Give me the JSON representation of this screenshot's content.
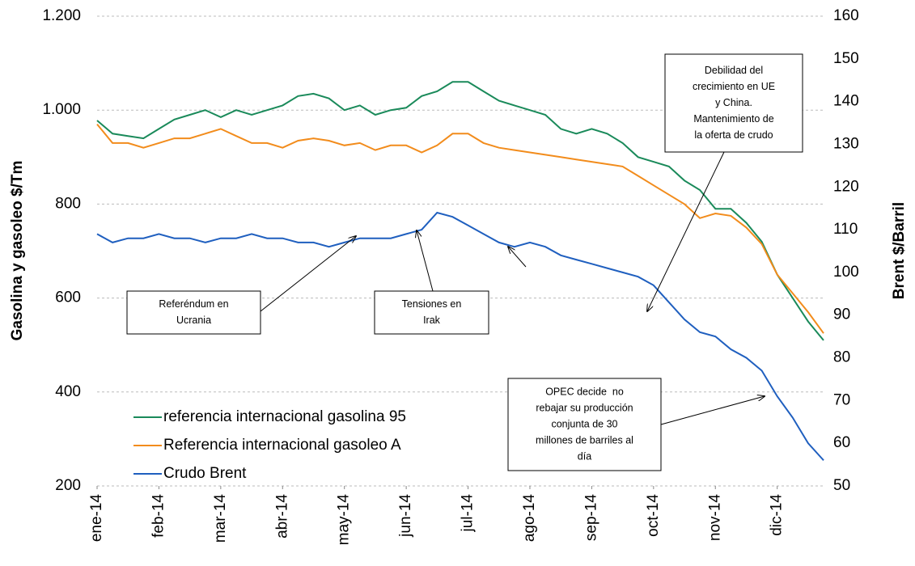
{
  "chart_data": {
    "type": "line",
    "y_label": "Gasolina y gasoleo $/Tm",
    "y2_label": "Brent $/Barril",
    "x": [
      0,
      0.25,
      0.5,
      0.75,
      1,
      1.25,
      1.5,
      1.75,
      2,
      2.25,
      2.5,
      2.75,
      3,
      3.25,
      3.5,
      3.75,
      4,
      4.25,
      4.5,
      4.75,
      5,
      5.25,
      5.5,
      5.75,
      6,
      6.25,
      6.5,
      6.75,
      7,
      7.25,
      7.5,
      7.75,
      8,
      8.25,
      8.5,
      8.75,
      9,
      9.25,
      9.5,
      9.75,
      10,
      10.25,
      10.5,
      10.75,
      11,
      11.25,
      11.5,
      11.75
    ],
    "xlim": [
      0,
      11.75
    ],
    "xticks": [
      {
        "value": 0,
        "label": "ene-14"
      },
      {
        "value": 1,
        "label": "feb-14"
      },
      {
        "value": 2,
        "label": "mar-14"
      },
      {
        "value": 3,
        "label": "abr-14"
      },
      {
        "value": 4,
        "label": "may-14"
      },
      {
        "value": 5,
        "label": "jun-14"
      },
      {
        "value": 6,
        "label": "jul-14"
      },
      {
        "value": 7,
        "label": "ago-14"
      },
      {
        "value": 8,
        "label": "sep-14"
      },
      {
        "value": 9,
        "label": "oct-14"
      },
      {
        "value": 10,
        "label": "nov-14"
      },
      {
        "value": 11,
        "label": "dic-14"
      }
    ],
    "ylim": [
      200,
      1200
    ],
    "yticks": [
      200,
      400,
      600,
      800,
      {
        "value": 1000,
        "label": "1.000"
      },
      {
        "value": 1200,
        "label": "1.200"
      }
    ],
    "y2lim": [
      50,
      160
    ],
    "y2ticks": [
      50,
      60,
      70,
      80,
      90,
      100,
      110,
      120,
      130,
      140,
      150,
      160
    ],
    "grid": true,
    "legend": "lower left",
    "series": [
      {
        "name": "referencia internacional gasolina 95",
        "color": "#1a8a5a",
        "values": [
          978,
          950,
          945,
          940,
          960,
          980,
          990,
          1000,
          985,
          1000,
          990,
          1000,
          1010,
          1030,
          1035,
          1025,
          1000,
          1010,
          990,
          1000,
          1005,
          1030,
          1040,
          1060,
          1060,
          1040,
          1020,
          1010,
          1000,
          990,
          960,
          950,
          960,
          950,
          930,
          900,
          890,
          880,
          850,
          830,
          790,
          790,
          760,
          720,
          650,
          600,
          550,
          510
        ]
      },
      {
        "name": "Referencia internacional gasoleo A",
        "color": "#f28c1c",
        "values": [
          970,
          930,
          930,
          920,
          930,
          940,
          940,
          950,
          960,
          945,
          930,
          930,
          920,
          935,
          940,
          935,
          925,
          930,
          915,
          925,
          925,
          910,
          925,
          950,
          950,
          930,
          920,
          915,
          910,
          905,
          900,
          895,
          890,
          885,
          880,
          860,
          840,
          820,
          800,
          770,
          780,
          775,
          750,
          715,
          650,
          610,
          570,
          525
        ]
      },
      {
        "name": "Crudo Brent",
        "color": "#1f5fbf",
        "axis": "y2",
        "values": [
          109,
          107,
          108,
          108,
          109,
          108,
          108,
          107,
          108,
          108,
          109,
          108,
          108,
          107,
          107,
          106,
          107,
          108,
          108,
          108,
          109,
          110,
          114,
          113,
          111,
          109,
          107,
          106,
          107,
          106,
          104,
          103,
          102,
          101,
          100,
          99,
          97,
          93,
          89,
          86,
          85,
          82,
          80,
          77,
          71,
          66,
          60,
          56
        ]
      }
    ],
    "annotations": [
      {
        "text": [
          "Referéndum en",
          "Ucrania"
        ]
      },
      {
        "text": [
          "Tensiones en",
          "Irak"
        ]
      },
      {
        "text": [
          "Debilidad del",
          "crecimiento en UE",
          "y China.",
          "Mantenimiento de",
          "la oferta de crudo"
        ]
      },
      {
        "text": [
          "OPEC decide  no",
          "rebajar su producción",
          "conjunta de 30",
          "millones de barriles al",
          "día"
        ]
      }
    ]
  }
}
